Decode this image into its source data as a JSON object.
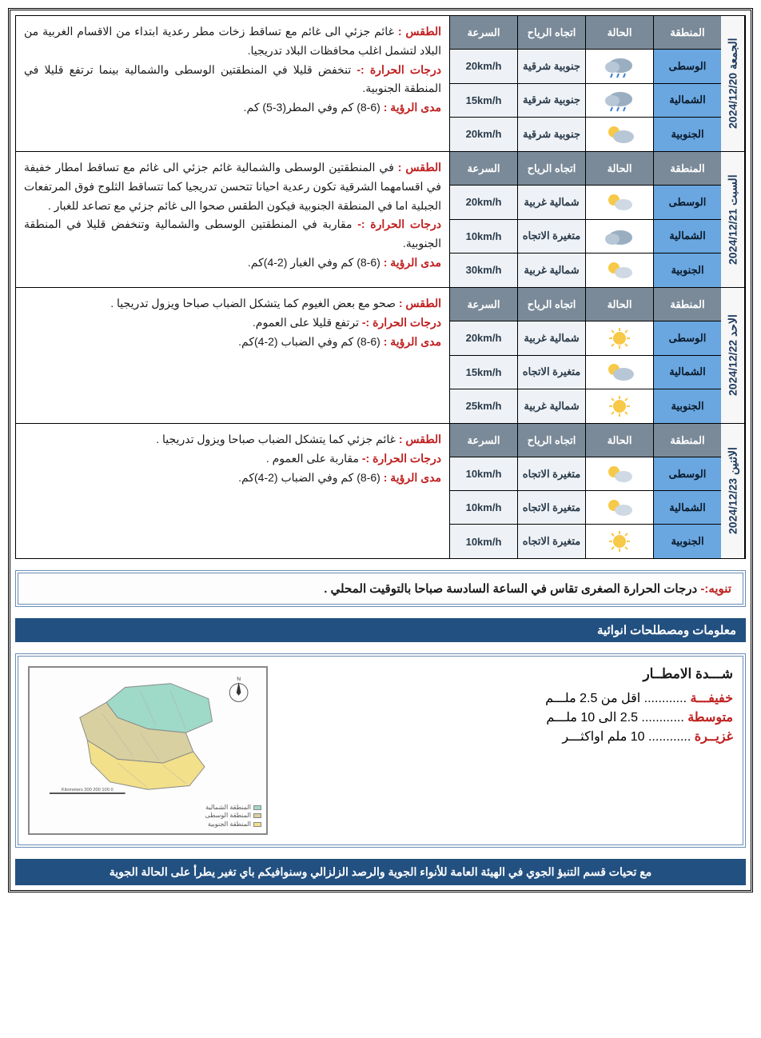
{
  "headers": {
    "region": "المنطقة",
    "cond": "الحالة",
    "wind": "اتجاه الرياح",
    "speed": "السرعة"
  },
  "labels": {
    "weather": "الطقس :",
    "temp": "درجات الحرارة :-",
    "vis": "مدى الرؤية :"
  },
  "icons": {
    "cloudy_rain": "cr",
    "partly_cloudy": "pc",
    "cloudy": "cl",
    "sunny": "su",
    "sun_cloud": "sc"
  },
  "days": [
    {
      "label": "الجمعة 2024/12/20",
      "rows": [
        {
          "region": "الوسطى",
          "cond": "cloudy_rain",
          "wind": "جنوبية شرقية",
          "speed": "20km/h"
        },
        {
          "region": "الشمالية",
          "cond": "cloudy_rain",
          "wind": "جنوبية شرقية",
          "speed": "15km/h"
        },
        {
          "region": "الجنوبية",
          "cond": "partly_cloudy",
          "wind": "جنوبية شرقية",
          "speed": "20km/h"
        }
      ],
      "weather": "غائم جزئي الى غائم مع تساقط زخات مطر رعدية ابتداء من الاقسام الغربية من البلاد لتشمل اغلب محافظات البلاد تدريجيا.",
      "temp": "تنخفض قليلا في المنطقتين الوسطى والشمالية بينما ترتفع قليلا في المنطقة الجنوبية.",
      "vis": "(6-8) كم وفي المطر(3-5) كم."
    },
    {
      "label": "السبت 2024/12/21",
      "rows": [
        {
          "region": "الوسطى",
          "cond": "sun_cloud",
          "wind": "شمالية غربية",
          "speed": "20km/h"
        },
        {
          "region": "الشمالية",
          "cond": "cloudy",
          "wind": "متغيرة الاتجاه",
          "speed": "10km/h"
        },
        {
          "region": "الجنوبية",
          "cond": "sun_cloud",
          "wind": "شمالية غربية",
          "speed": "30km/h"
        }
      ],
      "weather": "في المنطقتين الوسطى والشمالية غائم جزئي الى غائم مع تساقط امطار خفيفة في اقسامهما الشرقية تكون رعدية احيانا تتحسن تدريجيا كما تتساقط الثلوج فوق المرتفعات الجبلية اما في المنطقة الجنوبية فيكون الطقس صحوا الى غائم جزئي مع تصاعد للغبار .",
      "temp": "مقاربة في المنطقتين الوسطى والشمالية وتنخفض قليلا في المنطقة الجنوبية.",
      "vis": "(6-8) كم وفي الغبار (2-4)كم."
    },
    {
      "label": "الاحد 2024/12/22",
      "rows": [
        {
          "region": "الوسطى",
          "cond": "sunny",
          "wind": "شمالية غربية",
          "speed": "20km/h"
        },
        {
          "region": "الشمالية",
          "cond": "partly_cloudy",
          "wind": "متغيرة الاتجاه",
          "speed": "15km/h"
        },
        {
          "region": "الجنوبية",
          "cond": "sunny",
          "wind": "شمالية غربية",
          "speed": "25km/h"
        }
      ],
      "weather": "صحو مع بعض الغيوم كما يتشكل الضباب صباحا ويزول تدريجيا .",
      "temp": "ترتفع قليلا على العموم.",
      "vis": "(6-8) كم وفي الضباب (2-4)كم."
    },
    {
      "label": "الاثنين 2024/12/23",
      "rows": [
        {
          "region": "الوسطى",
          "cond": "sun_cloud",
          "wind": "متغيرة الاتجاه",
          "speed": "10km/h"
        },
        {
          "region": "الشمالية",
          "cond": "sun_cloud",
          "wind": "متغيرة الاتجاه",
          "speed": "10km/h"
        },
        {
          "region": "الجنوبية",
          "cond": "sunny",
          "wind": "متغيرة الاتجاه",
          "speed": "10km/h"
        }
      ],
      "weather": "غائم جزئي كما يتشكل الضباب صباحا ويزول تدريجيا .",
      "temp": "مقاربة على العموم .",
      "vis": "(6-8) كم وفي الضباب (2-4)كم."
    }
  ],
  "note": {
    "label": "تنويه:-",
    "text": "درجات الحرارة الصغرى تقاس في الساعة السادسة صباحا بالتوقيت المحلي ."
  },
  "section_title": "معلومات ومصطلحات انوائية",
  "rain": {
    "title": "شـــدة الامطــار",
    "items": [
      {
        "k": "خفيفـــة",
        "v": "اقل من 2.5 ملـــم"
      },
      {
        "k": "متوسطة",
        "v": "2.5 الى 10 ملـــم"
      },
      {
        "k": "غزيــرة",
        "v": "10 ملم اواكثـــر"
      }
    ]
  },
  "map_legend": [
    "المنطقة الشمالية",
    "المنطقة الوسطى",
    "المنطقة الجنوبية"
  ],
  "map_colors": {
    "north": "#9fd9c8",
    "center": "#d8d0a0",
    "south": "#f2e08a"
  },
  "footer": "مع تحيات قسم التنبؤ الجوي في الهيئة العامة للأنواء الجوية والرصد الزلزالي وسنوافيكم  باي تغير يطرأ على الحالة الجوية"
}
